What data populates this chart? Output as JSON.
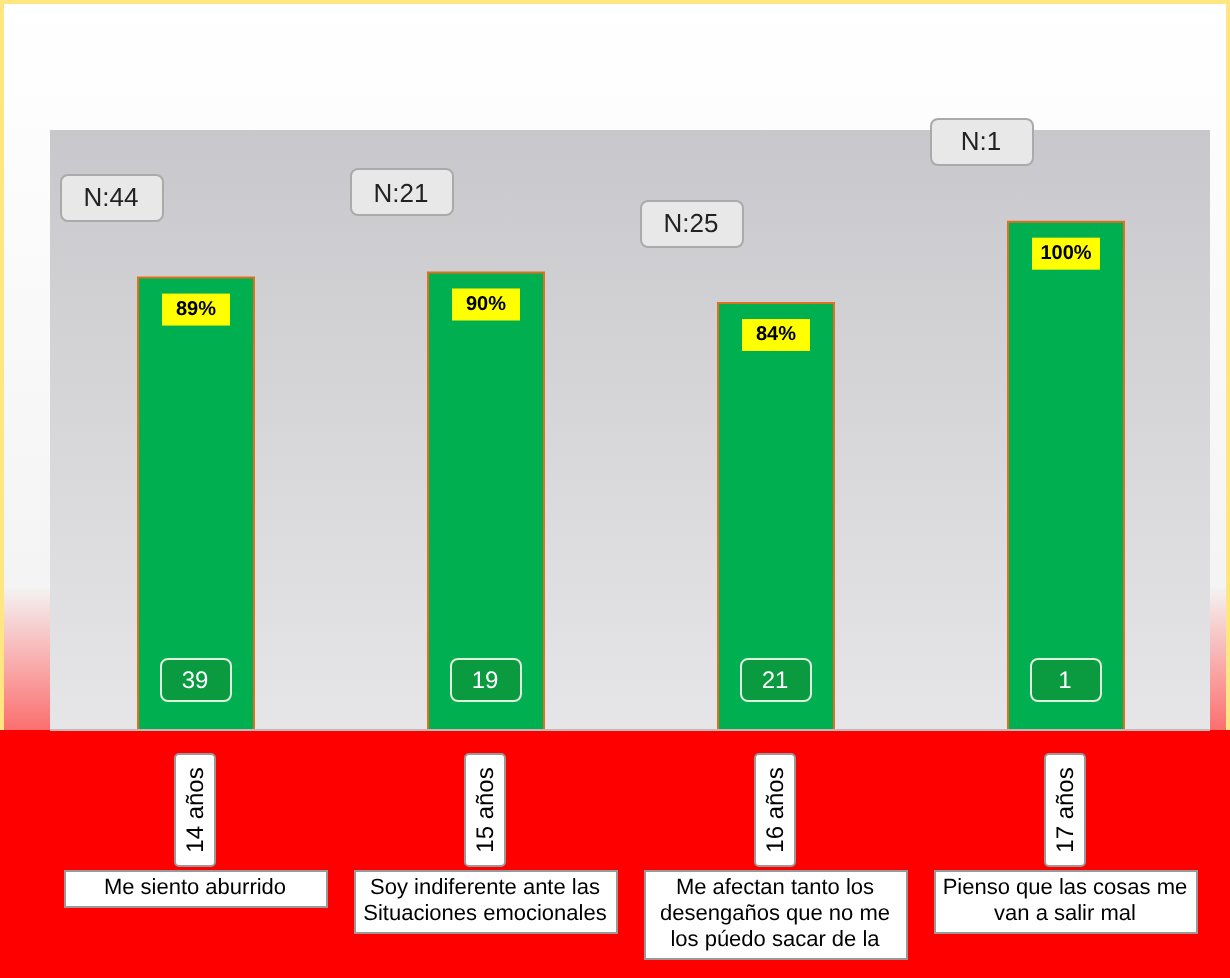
{
  "chart_data": {
    "type": "bar",
    "categories": [
      "14 años",
      "15 años",
      "16 años",
      "17 años"
    ],
    "values": [
      89,
      90,
      84,
      100
    ],
    "value_labels": [
      "89%",
      "90%",
      "84%",
      "100%"
    ],
    "color": "#00b050",
    "grid": false,
    "legend": false,
    "tick_labels": "x",
    "annotations": [
      "N:44",
      "N:21",
      "N:25",
      "N:1",
      {
        "text": "39",
        "x": "14 años",
        "y": 10
      },
      {
        "text": "19",
        "x": "15 años",
        "y": 10
      },
      {
        "text": "21",
        "x": "16 años",
        "y": 10
      },
      {
        "text": "1",
        "x": "17 años",
        "y": 10
      },
      "Me siento aburrido",
      "Soy indiferente ante las Situaciones emocionales",
      "Me afectan tanto los desengaños que no me los púedo sacar de la",
      "Pienso que las cosas me van a salir mal"
    ]
  }
}
